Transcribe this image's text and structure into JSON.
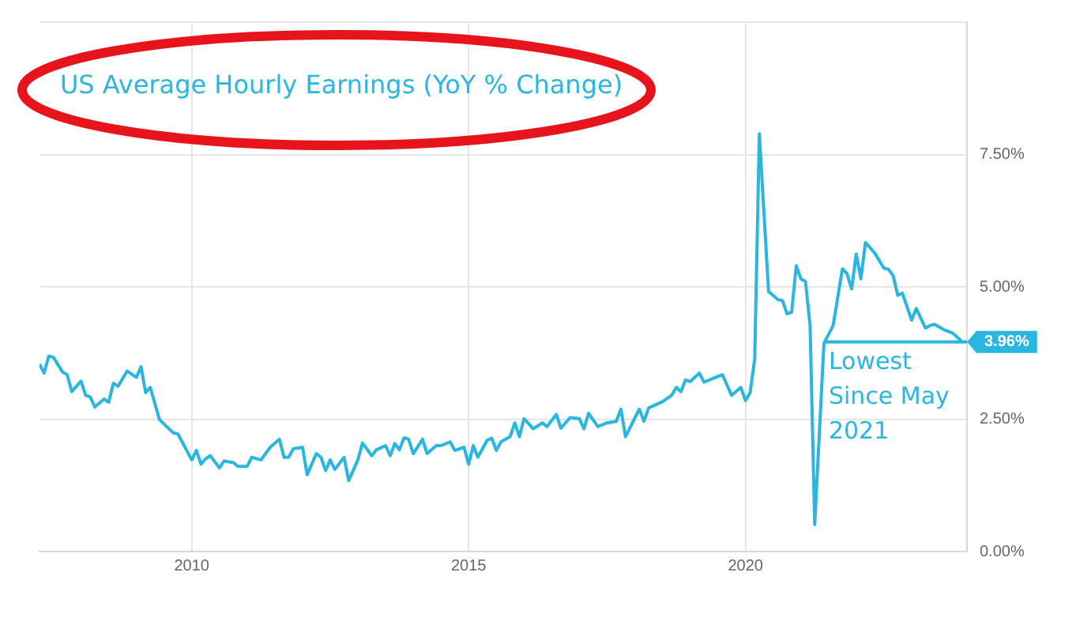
{
  "chart_data": {
    "type": "line",
    "title": "US Average Hourly Earnings (YoY % Change)",
    "x": [
      "2007-04",
      "2007-05",
      "2007-06",
      "2007-07",
      "2007-09",
      "2007-10",
      "2007-11",
      "2008-01",
      "2008-02",
      "2008-03",
      "2008-04",
      "2008-06",
      "2008-07",
      "2008-08",
      "2008-09",
      "2008-11",
      "2009-01",
      "2009-02",
      "2009-03",
      "2009-04",
      "2009-06",
      "2009-09",
      "2009-10",
      "2010-01",
      "2010-02",
      "2010-03",
      "2010-04",
      "2010-05",
      "2010-07",
      "2010-08",
      "2010-10",
      "2010-11",
      "2011-01",
      "2011-02",
      "2011-04",
      "2011-06",
      "2011-08",
      "2011-09",
      "2011-10",
      "2011-11",
      "2012-01",
      "2012-02",
      "2012-04",
      "2012-05",
      "2012-06",
      "2012-07",
      "2012-08",
      "2012-10",
      "2012-11",
      "2013-01",
      "2013-02",
      "2013-04",
      "2013-05",
      "2013-07",
      "2013-08",
      "2013-09",
      "2013-10",
      "2013-11",
      "2013-12",
      "2014-01",
      "2014-03",
      "2014-04",
      "2014-06",
      "2014-07",
      "2014-09",
      "2014-10",
      "2014-12",
      "2015-01",
      "2015-02",
      "2015-03",
      "2015-05",
      "2015-06",
      "2015-07",
      "2015-08",
      "2015-10",
      "2015-11",
      "2015-12",
      "2016-01",
      "2016-03",
      "2016-05",
      "2016-06",
      "2016-08",
      "2016-09",
      "2016-11",
      "2017-01",
      "2017-02",
      "2017-03",
      "2017-05",
      "2017-07",
      "2017-09",
      "2017-10",
      "2017-11",
      "2018-02",
      "2018-03",
      "2018-04",
      "2018-07",
      "2018-09",
      "2018-10",
      "2018-11",
      "2018-12",
      "2019-01",
      "2019-03",
      "2019-04",
      "2019-06",
      "2019-08",
      "2019-10",
      "2019-12",
      "2020-01",
      "2020-02",
      "2020-03",
      "2020-04",
      "2020-06",
      "2020-08",
      "2020-09",
      "2020-10",
      "2020-11",
      "2020-12",
      "2021-01",
      "2021-02",
      "2021-03",
      "2021-04",
      "2021-06",
      "2021-08",
      "2021-10",
      "2021-11",
      "2021-12",
      "2022-01",
      "2022-02",
      "2022-03",
      "2022-05",
      "2022-07",
      "2022-08",
      "2022-09",
      "2022-10",
      "2022-11",
      "2023-01",
      "2023-02",
      "2023-04",
      "2023-05",
      "2023-06",
      "2023-08",
      "2023-10",
      "2023-12"
    ],
    "series": [
      {
        "color": "#29b6e0",
        "values": [
          3.54,
          3.37,
          3.69,
          3.67,
          3.39,
          3.34,
          3.02,
          3.22,
          2.95,
          2.92,
          2.73,
          2.88,
          2.82,
          3.18,
          3.12,
          3.41,
          3.29,
          3.49,
          3.0,
          3.1,
          2.49,
          2.24,
          2.22,
          1.73,
          1.91,
          1.65,
          1.75,
          1.81,
          1.58,
          1.71,
          1.68,
          1.61,
          1.61,
          1.78,
          1.73,
          1.97,
          2.12,
          1.78,
          1.78,
          1.94,
          1.97,
          1.45,
          1.85,
          1.78,
          1.53,
          1.73,
          1.55,
          1.78,
          1.34,
          1.73,
          2.05,
          1.81,
          1.92,
          2.0,
          1.81,
          2.04,
          1.92,
          2.15,
          2.12,
          1.85,
          2.12,
          1.85,
          2.0,
          2.0,
          2.07,
          1.91,
          1.97,
          1.65,
          2.0,
          1.78,
          2.1,
          2.14,
          1.91,
          2.07,
          2.17,
          2.43,
          2.17,
          2.51,
          2.32,
          2.43,
          2.36,
          2.59,
          2.33,
          2.53,
          2.51,
          2.32,
          2.61,
          2.36,
          2.43,
          2.46,
          2.69,
          2.17,
          2.69,
          2.46,
          2.71,
          2.83,
          2.95,
          3.1,
          3.02,
          3.24,
          3.21,
          3.37,
          3.2,
          3.27,
          3.34,
          2.95,
          3.1,
          2.85,
          3.0,
          3.64,
          7.89,
          4.91,
          4.76,
          4.74,
          4.49,
          4.52,
          5.4,
          5.15,
          5.1,
          4.27,
          0.51,
          3.93,
          4.27,
          5.34,
          5.25,
          4.96,
          5.62,
          5.15,
          5.84,
          5.64,
          5.35,
          5.33,
          5.21,
          4.84,
          4.88,
          4.37,
          4.59,
          4.22,
          4.27,
          4.29,
          4.19,
          4.12,
          3.96
        ]
      }
    ],
    "xlim": [
      "2007-04",
      "2024-01"
    ],
    "xticks": [
      "2010",
      "2015",
      "2020"
    ],
    "ylim": [
      0,
      10
    ],
    "yticks": [
      {
        "value": 0,
        "label": "0.00%"
      },
      {
        "value": 2.5,
        "label": "2.50%"
      },
      {
        "value": 5,
        "label": "5.00%"
      },
      {
        "value": 7.5,
        "label": "7.50%"
      },
      {
        "value": 10,
        "label": null
      }
    ],
    "ref_lines": [
      {
        "axis": "y",
        "value": 3.96,
        "label": "3.96%",
        "color": "#29b6e0"
      }
    ],
    "annotations": [
      {
        "text": "Lowest Since May 2021",
        "x": "2021-06",
        "y": 3.96
      }
    ],
    "grid": true,
    "legend": false,
    "marker": "none",
    "line_style": "solid"
  }
}
